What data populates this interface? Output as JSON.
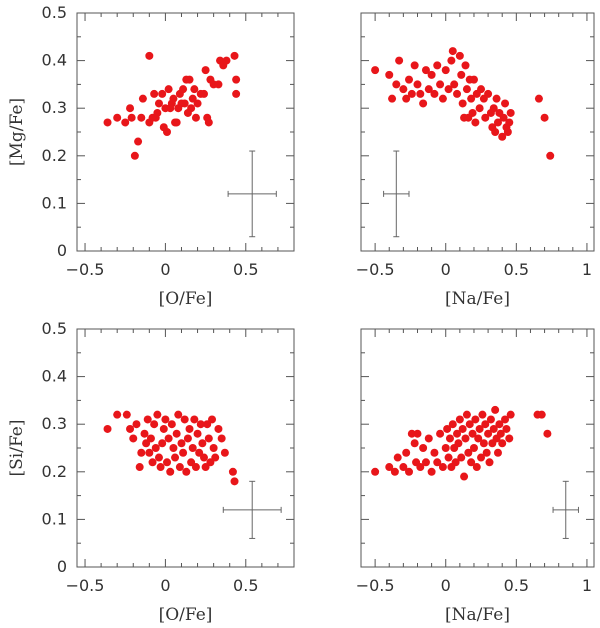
{
  "chart_data": [
    {
      "id": "mg-o",
      "type": "scatter",
      "xlabel": "[O/Fe]",
      "ylabel": "[Mg/Fe]",
      "xlim": [
        -0.55,
        0.8
      ],
      "ylim": [
        0,
        0.5
      ],
      "xticks": [
        "−0.5",
        "0",
        "0.5"
      ],
      "yticks": [
        "0",
        "0.1",
        "0.2",
        "0.3",
        "0.4",
        "0.5"
      ],
      "point_color": "#e8161a",
      "errorbar": {
        "x": 0.54,
        "y": 0.12,
        "xerr": 0.15,
        "yerr": 0.09
      },
      "points": [
        [
          -0.36,
          0.27
        ],
        [
          -0.3,
          0.28
        ],
        [
          -0.25,
          0.27
        ],
        [
          -0.22,
          0.3
        ],
        [
          -0.21,
          0.28
        ],
        [
          -0.19,
          0.2
        ],
        [
          -0.17,
          0.23
        ],
        [
          -0.15,
          0.28
        ],
        [
          -0.14,
          0.32
        ],
        [
          -0.1,
          0.41
        ],
        [
          -0.1,
          0.27
        ],
        [
          -0.08,
          0.28
        ],
        [
          -0.07,
          0.33
        ],
        [
          -0.06,
          0.28
        ],
        [
          -0.05,
          0.29
        ],
        [
          -0.04,
          0.31
        ],
        [
          -0.02,
          0.33
        ],
        [
          -0.01,
          0.26
        ],
        [
          0.0,
          0.3
        ],
        [
          0.01,
          0.25
        ],
        [
          0.02,
          0.34
        ],
        [
          0.03,
          0.3
        ],
        [
          0.04,
          0.31
        ],
        [
          0.05,
          0.32
        ],
        [
          0.06,
          0.27
        ],
        [
          0.07,
          0.27
        ],
        [
          0.08,
          0.3
        ],
        [
          0.09,
          0.33
        ],
        [
          0.1,
          0.31
        ],
        [
          0.11,
          0.34
        ],
        [
          0.12,
          0.31
        ],
        [
          0.13,
          0.36
        ],
        [
          0.14,
          0.29
        ],
        [
          0.15,
          0.36
        ],
        [
          0.16,
          0.3
        ],
        [
          0.17,
          0.32
        ],
        [
          0.18,
          0.34
        ],
        [
          0.19,
          0.28
        ],
        [
          0.2,
          0.31
        ],
        [
          0.22,
          0.33
        ],
        [
          0.24,
          0.33
        ],
        [
          0.25,
          0.38
        ],
        [
          0.26,
          0.28
        ],
        [
          0.27,
          0.27
        ],
        [
          0.28,
          0.36
        ],
        [
          0.3,
          0.35
        ],
        [
          0.33,
          0.35
        ],
        [
          0.34,
          0.4
        ],
        [
          0.36,
          0.39
        ],
        [
          0.38,
          0.4
        ],
        [
          0.43,
          0.41
        ],
        [
          0.44,
          0.36
        ],
        [
          0.44,
          0.33
        ]
      ]
    },
    {
      "id": "mg-na",
      "type": "scatter",
      "xlabel": "[Na/Fe]",
      "ylabel": "",
      "xlim": [
        -0.6,
        1.05
      ],
      "ylim": [
        0,
        0.5
      ],
      "xticks": [
        "−0.5",
        "0",
        "0.5",
        "1"
      ],
      "yticks": [],
      "point_color": "#e8161a",
      "errorbar": {
        "x": -0.35,
        "y": 0.12,
        "xerr": 0.09,
        "yerr": 0.09
      },
      "points": [
        [
          -0.5,
          0.38
        ],
        [
          -0.4,
          0.37
        ],
        [
          -0.38,
          0.32
        ],
        [
          -0.35,
          0.35
        ],
        [
          -0.33,
          0.4
        ],
        [
          -0.3,
          0.34
        ],
        [
          -0.28,
          0.32
        ],
        [
          -0.26,
          0.36
        ],
        [
          -0.24,
          0.33
        ],
        [
          -0.22,
          0.39
        ],
        [
          -0.2,
          0.35
        ],
        [
          -0.18,
          0.33
        ],
        [
          -0.16,
          0.31
        ],
        [
          -0.14,
          0.38
        ],
        [
          -0.12,
          0.34
        ],
        [
          -0.1,
          0.37
        ],
        [
          -0.08,
          0.33
        ],
        [
          -0.06,
          0.39
        ],
        [
          -0.04,
          0.35
        ],
        [
          -0.02,
          0.32
        ],
        [
          0.0,
          0.38
        ],
        [
          0.02,
          0.34
        ],
        [
          0.04,
          0.4
        ],
        [
          0.05,
          0.42
        ],
        [
          0.06,
          0.35
        ],
        [
          0.08,
          0.33
        ],
        [
          0.1,
          0.41
        ],
        [
          0.11,
          0.37
        ],
        [
          0.12,
          0.31
        ],
        [
          0.13,
          0.28
        ],
        [
          0.14,
          0.39
        ],
        [
          0.15,
          0.34
        ],
        [
          0.16,
          0.28
        ],
        [
          0.17,
          0.36
        ],
        [
          0.18,
          0.32
        ],
        [
          0.19,
          0.29
        ],
        [
          0.2,
          0.36
        ],
        [
          0.21,
          0.27
        ],
        [
          0.22,
          0.33
        ],
        [
          0.24,
          0.3
        ],
        [
          0.25,
          0.34
        ],
        [
          0.27,
          0.32
        ],
        [
          0.28,
          0.28
        ],
        [
          0.3,
          0.33
        ],
        [
          0.32,
          0.29
        ],
        [
          0.33,
          0.26
        ],
        [
          0.34,
          0.3
        ],
        [
          0.35,
          0.25
        ],
        [
          0.36,
          0.32
        ],
        [
          0.37,
          0.27
        ],
        [
          0.38,
          0.29
        ],
        [
          0.4,
          0.24
        ],
        [
          0.41,
          0.28
        ],
        [
          0.42,
          0.31
        ],
        [
          0.43,
          0.26
        ],
        [
          0.44,
          0.25
        ],
        [
          0.45,
          0.27
        ],
        [
          0.46,
          0.29
        ],
        [
          0.66,
          0.32
        ],
        [
          0.7,
          0.28
        ],
        [
          0.74,
          0.2
        ]
      ]
    },
    {
      "id": "si-o",
      "type": "scatter",
      "xlabel": "[O/Fe]",
      "ylabel": "[Si/Fe]",
      "xlim": [
        -0.55,
        0.8
      ],
      "ylim": [
        0,
        0.5
      ],
      "xticks": [
        "−0.5",
        "0",
        "0.5"
      ],
      "yticks": [
        "0",
        "0.1",
        "0.2",
        "0.3",
        "0.4",
        "0.5"
      ],
      "point_color": "#e8161a",
      "errorbar": {
        "x": 0.54,
        "y": 0.12,
        "xerr": 0.18,
        "yerr": 0.06
      },
      "points": [
        [
          -0.36,
          0.29
        ],
        [
          -0.3,
          0.32
        ],
        [
          -0.24,
          0.32
        ],
        [
          -0.22,
          0.29
        ],
        [
          -0.2,
          0.27
        ],
        [
          -0.18,
          0.3
        ],
        [
          -0.16,
          0.21
        ],
        [
          -0.15,
          0.24
        ],
        [
          -0.13,
          0.28
        ],
        [
          -0.12,
          0.26
        ],
        [
          -0.11,
          0.31
        ],
        [
          -0.1,
          0.24
        ],
        [
          -0.09,
          0.27
        ],
        [
          -0.08,
          0.22
        ],
        [
          -0.07,
          0.3
        ],
        [
          -0.06,
          0.25
        ],
        [
          -0.05,
          0.32
        ],
        [
          -0.04,
          0.23
        ],
        [
          -0.03,
          0.21
        ],
        [
          -0.02,
          0.26
        ],
        [
          -0.01,
          0.29
        ],
        [
          0.0,
          0.31
        ],
        [
          0.01,
          0.22
        ],
        [
          0.02,
          0.27
        ],
        [
          0.03,
          0.2
        ],
        [
          0.04,
          0.3
        ],
        [
          0.05,
          0.25
        ],
        [
          0.06,
          0.23
        ],
        [
          0.07,
          0.28
        ],
        [
          0.08,
          0.32
        ],
        [
          0.09,
          0.21
        ],
        [
          0.1,
          0.26
        ],
        [
          0.11,
          0.24
        ],
        [
          0.12,
          0.31
        ],
        [
          0.13,
          0.2
        ],
        [
          0.14,
          0.27
        ],
        [
          0.15,
          0.29
        ],
        [
          0.16,
          0.22
        ],
        [
          0.17,
          0.25
        ],
        [
          0.18,
          0.31
        ],
        [
          0.19,
          0.21
        ],
        [
          0.2,
          0.28
        ],
        [
          0.21,
          0.24
        ],
        [
          0.22,
          0.3
        ],
        [
          0.23,
          0.26
        ],
        [
          0.24,
          0.23
        ],
        [
          0.25,
          0.21
        ],
        [
          0.26,
          0.3
        ],
        [
          0.27,
          0.27
        ],
        [
          0.28,
          0.22
        ],
        [
          0.29,
          0.31
        ],
        [
          0.3,
          0.25
        ],
        [
          0.31,
          0.23
        ],
        [
          0.33,
          0.29
        ],
        [
          0.35,
          0.27
        ],
        [
          0.37,
          0.24
        ],
        [
          0.42,
          0.2
        ],
        [
          0.43,
          0.18
        ]
      ]
    },
    {
      "id": "si-na",
      "type": "scatter",
      "xlabel": "[Na/Fe]",
      "ylabel": "",
      "xlim": [
        -0.6,
        1.05
      ],
      "ylim": [
        0,
        0.5
      ],
      "xticks": [
        "−0.5",
        "0",
        "0.5",
        "1"
      ],
      "yticks": [],
      "point_color": "#e8161a",
      "errorbar": {
        "x": 0.85,
        "y": 0.12,
        "xerr": 0.09,
        "yerr": 0.06
      },
      "points": [
        [
          -0.5,
          0.2
        ],
        [
          -0.4,
          0.21
        ],
        [
          -0.36,
          0.2
        ],
        [
          -0.34,
          0.23
        ],
        [
          -0.3,
          0.21
        ],
        [
          -0.28,
          0.24
        ],
        [
          -0.26,
          0.2
        ],
        [
          -0.24,
          0.28
        ],
        [
          -0.22,
          0.26
        ],
        [
          -0.21,
          0.22
        ],
        [
          -0.2,
          0.28
        ],
        [
          -0.18,
          0.21
        ],
        [
          -0.16,
          0.25
        ],
        [
          -0.14,
          0.22
        ],
        [
          -0.12,
          0.27
        ],
        [
          -0.1,
          0.2
        ],
        [
          -0.08,
          0.24
        ],
        [
          -0.06,
          0.22
        ],
        [
          -0.04,
          0.28
        ],
        [
          -0.02,
          0.21
        ],
        [
          0.0,
          0.25
        ],
        [
          0.01,
          0.29
        ],
        [
          0.02,
          0.23
        ],
        [
          0.03,
          0.27
        ],
        [
          0.04,
          0.21
        ],
        [
          0.05,
          0.3
        ],
        [
          0.06,
          0.25
        ],
        [
          0.07,
          0.22
        ],
        [
          0.08,
          0.28
        ],
        [
          0.09,
          0.26
        ],
        [
          0.1,
          0.31
        ],
        [
          0.11,
          0.23
        ],
        [
          0.12,
          0.29
        ],
        [
          0.13,
          0.19
        ],
        [
          0.14,
          0.27
        ],
        [
          0.15,
          0.32
        ],
        [
          0.16,
          0.24
        ],
        [
          0.17,
          0.3
        ],
        [
          0.18,
          0.22
        ],
        [
          0.19,
          0.28
        ],
        [
          0.2,
          0.25
        ],
        [
          0.21,
          0.31
        ],
        [
          0.22,
          0.21
        ],
        [
          0.23,
          0.27
        ],
        [
          0.24,
          0.29
        ],
        [
          0.25,
          0.23
        ],
        [
          0.26,
          0.32
        ],
        [
          0.27,
          0.26
        ],
        [
          0.28,
          0.3
        ],
        [
          0.29,
          0.24
        ],
        [
          0.3,
          0.28
        ],
        [
          0.31,
          0.22
        ],
        [
          0.32,
          0.31
        ],
        [
          0.33,
          0.26
        ],
        [
          0.34,
          0.29
        ],
        [
          0.35,
          0.33
        ],
        [
          0.36,
          0.27
        ],
        [
          0.37,
          0.24
        ],
        [
          0.38,
          0.3
        ],
        [
          0.39,
          0.28
        ],
        [
          0.4,
          0.26
        ],
        [
          0.42,
          0.31
        ],
        [
          0.43,
          0.29
        ],
        [
          0.45,
          0.27
        ],
        [
          0.46,
          0.32
        ],
        [
          0.65,
          0.32
        ],
        [
          0.68,
          0.32
        ],
        [
          0.72,
          0.28
        ]
      ]
    }
  ]
}
